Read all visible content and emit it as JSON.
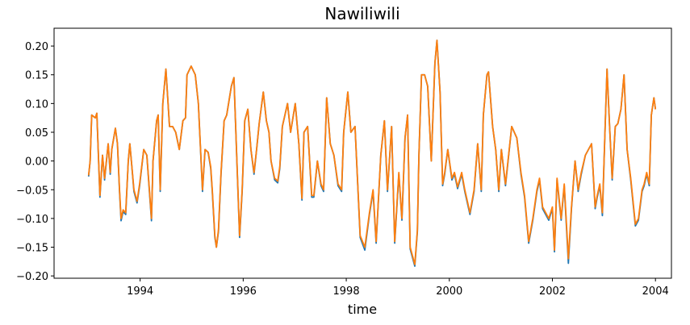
{
  "chart_data": {
    "type": "line",
    "title": "Nawiliwili",
    "xlabel": "time",
    "x": [
      1993.0,
      1993.03,
      1993.06,
      1993.13,
      1993.16,
      1993.22,
      1993.27,
      1993.31,
      1993.38,
      1993.42,
      1993.45,
      1993.52,
      1993.56,
      1993.6,
      1993.63,
      1993.67,
      1993.72,
      1993.77,
      1993.8,
      1993.83,
      1993.88,
      1993.94,
      1993.99,
      1994.07,
      1994.13,
      1994.18,
      1994.22,
      1994.25,
      1994.32,
      1994.35,
      1994.39,
      1994.44,
      1994.5,
      1994.57,
      1994.63,
      1994.69,
      1994.76,
      1994.83,
      1994.88,
      1994.91,
      1994.99,
      1995.07,
      1995.13,
      1995.21,
      1995.26,
      1995.32,
      1995.37,
      1995.4,
      1995.45,
      1995.48,
      1995.52,
      1995.57,
      1995.63,
      1995.68,
      1995.77,
      1995.82,
      1995.93,
      1995.98,
      1996.03,
      1996.09,
      1996.15,
      1996.21,
      1996.26,
      1996.31,
      1996.39,
      1996.45,
      1996.5,
      1996.54,
      1996.61,
      1996.67,
      1996.71,
      1996.76,
      1996.81,
      1996.86,
      1996.92,
      1997.01,
      1997.08,
      1997.14,
      1997.18,
      1997.25,
      1997.33,
      1997.37,
      1997.44,
      1997.51,
      1997.56,
      1997.62,
      1997.69,
      1997.76,
      1997.84,
      1997.91,
      1997.95,
      1998.03,
      1998.09,
      1998.17,
      1998.27,
      1998.36,
      1998.45,
      1998.52,
      1998.58,
      1998.67,
      1998.74,
      1998.8,
      1998.88,
      1998.94,
      1999.02,
      1999.08,
      1999.14,
      1999.19,
      1999.24,
      1999.33,
      1999.38,
      1999.41,
      1999.46,
      1999.52,
      1999.58,
      1999.65,
      1999.72,
      1999.76,
      1999.82,
      1999.87,
      1999.91,
      1999.97,
      2000.05,
      2000.1,
      2000.16,
      2000.24,
      2000.3,
      2000.4,
      2000.48,
      2000.55,
      2000.62,
      2000.66,
      2000.73,
      2000.76,
      2000.84,
      2000.9,
      2000.96,
      2001.01,
      2001.09,
      2001.21,
      2001.31,
      2001.39,
      2001.46,
      2001.54,
      2001.62,
      2001.7,
      2001.75,
      2001.81,
      2001.93,
      2002.0,
      2002.04,
      2002.09,
      2002.17,
      2002.23,
      2002.31,
      2002.37,
      2002.44,
      2002.5,
      2002.56,
      2002.64,
      2002.7,
      2002.76,
      2002.83,
      2002.87,
      2002.92,
      2002.97,
      2003.02,
      2003.06,
      2003.11,
      2003.16,
      2003.22,
      2003.27,
      2003.33,
      2003.39,
      2003.45,
      2003.52,
      2003.61,
      2003.67,
      2003.74,
      2003.78,
      2003.83,
      2003.88,
      2003.92,
      2003.97,
      2004.0
    ],
    "series": [
      {
        "color": "#1f77b4",
        "values": [
          -0.027,
          0.0,
          0.08,
          0.075,
          0.083,
          -0.063,
          0.01,
          -0.033,
          0.03,
          -0.023,
          0.02,
          0.057,
          0.03,
          -0.053,
          -0.104,
          -0.088,
          -0.093,
          0.0,
          0.03,
          0.0,
          -0.053,
          -0.073,
          -0.043,
          0.02,
          0.01,
          -0.053,
          -0.104,
          0.0,
          0.07,
          0.08,
          -0.053,
          0.1,
          0.16,
          0.06,
          0.06,
          0.05,
          0.02,
          0.07,
          0.075,
          0.15,
          0.165,
          0.15,
          0.1,
          -0.053,
          0.02,
          0.015,
          -0.013,
          -0.053,
          -0.133,
          -0.15,
          -0.123,
          -0.023,
          0.07,
          0.08,
          0.13,
          0.145,
          -0.133,
          -0.053,
          0.07,
          0.09,
          0.02,
          -0.023,
          0.02,
          0.065,
          0.12,
          0.07,
          0.05,
          0.0,
          -0.033,
          -0.038,
          -0.013,
          0.06,
          0.08,
          0.1,
          0.05,
          0.1,
          0.03,
          -0.068,
          0.05,
          0.06,
          -0.063,
          -0.063,
          0.0,
          -0.043,
          -0.053,
          0.11,
          0.03,
          0.01,
          -0.043,
          -0.053,
          0.05,
          0.12,
          0.05,
          0.06,
          -0.133,
          -0.155,
          -0.093,
          -0.053,
          -0.143,
          0.01,
          0.07,
          -0.053,
          0.06,
          -0.143,
          -0.023,
          -0.103,
          0.04,
          0.08,
          -0.153,
          -0.183,
          -0.123,
          0.01,
          0.15,
          0.15,
          0.13,
          0.0,
          0.17,
          0.21,
          0.12,
          -0.043,
          -0.023,
          0.02,
          -0.033,
          -0.023,
          -0.048,
          -0.023,
          -0.053,
          -0.093,
          -0.053,
          0.03,
          -0.053,
          0.08,
          0.15,
          0.155,
          0.06,
          0.02,
          -0.053,
          0.02,
          -0.043,
          0.06,
          0.04,
          -0.023,
          -0.063,
          -0.143,
          -0.103,
          -0.053,
          -0.033,
          -0.083,
          -0.103,
          -0.083,
          -0.158,
          -0.033,
          -0.103,
          -0.043,
          -0.178,
          -0.083,
          0.0,
          -0.053,
          -0.023,
          0.01,
          0.02,
          0.03,
          -0.083,
          -0.063,
          -0.043,
          -0.095,
          0.05,
          0.16,
          0.06,
          -0.033,
          0.06,
          0.065,
          0.09,
          0.15,
          0.02,
          -0.033,
          -0.113,
          -0.103,
          -0.053,
          -0.043,
          -0.023,
          -0.043,
          0.08,
          0.11,
          0.09
        ]
      },
      {
        "color": "#ff7f0e",
        "values": [
          -0.025,
          0.0,
          0.08,
          0.075,
          0.083,
          -0.06,
          0.01,
          -0.03,
          0.03,
          -0.02,
          0.02,
          0.057,
          0.03,
          -0.05,
          -0.1,
          -0.085,
          -0.09,
          0.0,
          0.03,
          0.0,
          -0.05,
          -0.07,
          -0.04,
          0.02,
          0.01,
          -0.05,
          -0.1,
          0.0,
          0.07,
          0.08,
          -0.05,
          0.1,
          0.16,
          0.06,
          0.06,
          0.05,
          0.02,
          0.07,
          0.075,
          0.15,
          0.165,
          0.15,
          0.1,
          -0.05,
          0.02,
          0.015,
          -0.01,
          -0.05,
          -0.13,
          -0.15,
          -0.12,
          -0.02,
          0.07,
          0.08,
          0.13,
          0.145,
          -0.13,
          -0.05,
          0.07,
          0.09,
          0.02,
          -0.02,
          0.02,
          0.065,
          0.12,
          0.07,
          0.05,
          0.0,
          -0.03,
          -0.035,
          -0.01,
          0.06,
          0.08,
          0.1,
          0.05,
          0.1,
          0.03,
          -0.065,
          0.05,
          0.06,
          -0.06,
          -0.06,
          0.0,
          -0.04,
          -0.05,
          0.11,
          0.03,
          0.01,
          -0.04,
          -0.05,
          0.05,
          0.12,
          0.05,
          0.06,
          -0.13,
          -0.15,
          -0.09,
          -0.05,
          -0.14,
          0.01,
          0.07,
          -0.05,
          0.06,
          -0.14,
          -0.02,
          -0.1,
          0.04,
          0.08,
          -0.15,
          -0.18,
          -0.12,
          0.01,
          0.15,
          0.15,
          0.13,
          0.0,
          0.17,
          0.21,
          0.12,
          -0.04,
          -0.02,
          0.02,
          -0.03,
          -0.02,
          -0.045,
          -0.02,
          -0.05,
          -0.09,
          -0.05,
          0.03,
          -0.05,
          0.08,
          0.15,
          0.155,
          0.06,
          0.02,
          -0.05,
          0.02,
          -0.04,
          0.06,
          0.04,
          -0.02,
          -0.06,
          -0.14,
          -0.1,
          -0.05,
          -0.03,
          -0.08,
          -0.1,
          -0.08,
          -0.155,
          -0.03,
          -0.1,
          -0.04,
          -0.17,
          -0.08,
          0.0,
          -0.05,
          -0.02,
          0.01,
          0.02,
          0.03,
          -0.08,
          -0.06,
          -0.04,
          -0.09,
          0.05,
          0.16,
          0.06,
          -0.03,
          0.06,
          0.065,
          0.09,
          0.15,
          0.02,
          -0.03,
          -0.11,
          -0.1,
          -0.05,
          -0.04,
          -0.02,
          -0.04,
          0.08,
          0.11,
          0.09
        ]
      }
    ],
    "xlim": [
      1992.33,
      2004.31
    ],
    "xticks": [
      1994,
      1996,
      1998,
      2000,
      2002,
      2004
    ],
    "ylim": [
      -0.204,
      0.231
    ],
    "yticks": [
      {
        "value": -0.2,
        "label": "−0.20"
      },
      {
        "value": -0.15,
        "label": "−0.15"
      },
      {
        "value": -0.1,
        "label": "−0.10"
      },
      {
        "value": -0.05,
        "label": "−0.05"
      },
      {
        "value": 0.0,
        "label": "0.00"
      },
      {
        "value": 0.05,
        "label": "0.05"
      },
      {
        "value": 0.1,
        "label": "0.10"
      },
      {
        "value": 0.15,
        "label": "0.15"
      },
      {
        "value": 0.2,
        "label": "0.20"
      }
    ]
  }
}
